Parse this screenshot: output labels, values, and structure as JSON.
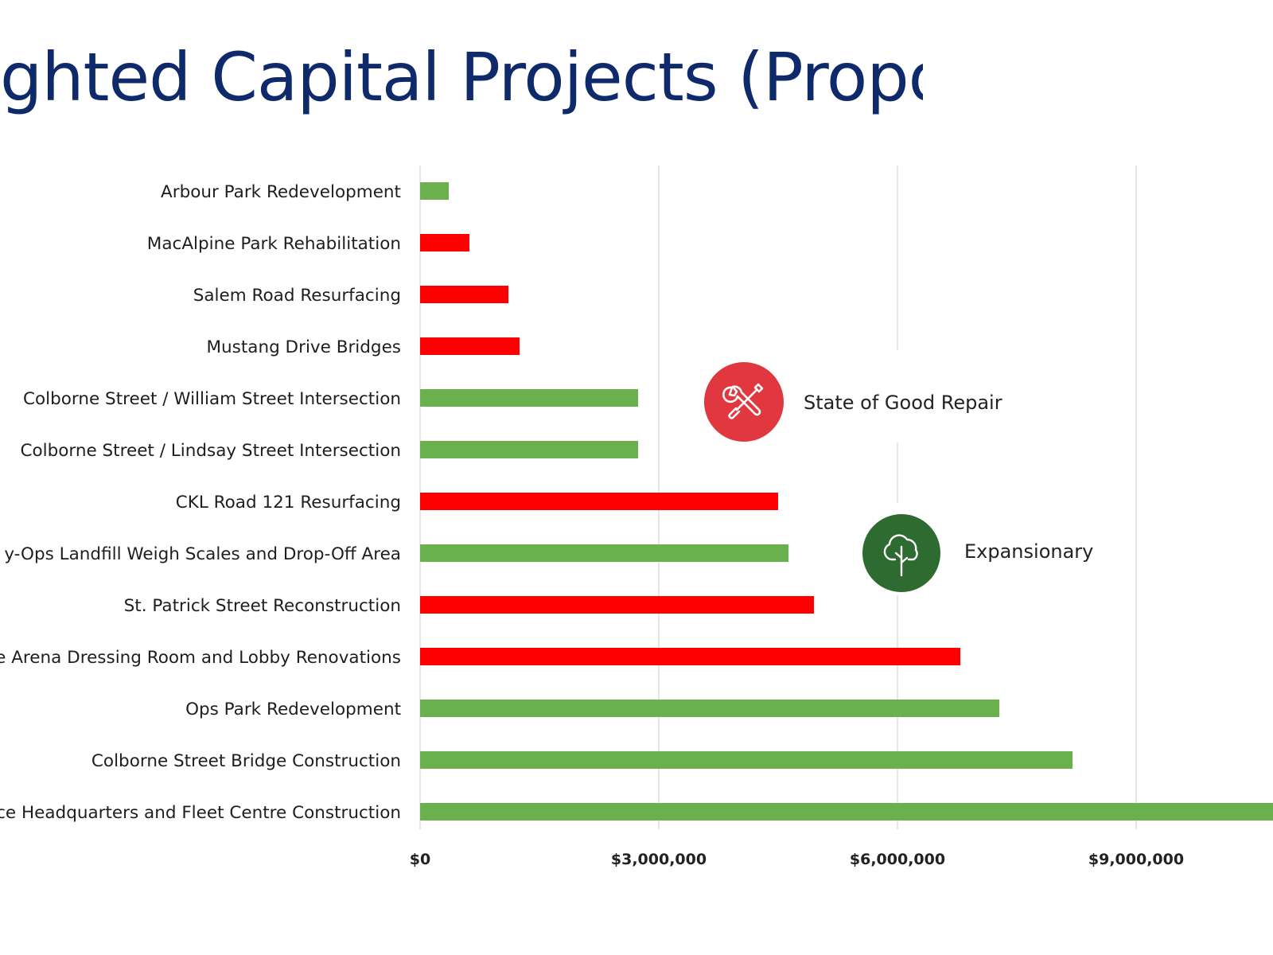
{
  "title": "ghted Capital Projects (Proposed)",
  "colors": {
    "state_of_good_repair": "#ff0000",
    "expansionary": "#6ab04c",
    "title": "#0e2a6b",
    "repair_icon": "#e0383e",
    "expansion_icon": "#2e6b30"
  },
  "legend": [
    {
      "key": "state_of_good_repair",
      "label": "State of Good Repair",
      "icon": "wrench-screwdriver-icon"
    },
    {
      "key": "expansionary",
      "label": "Expansionary",
      "icon": "tree-icon"
    }
  ],
  "chart_data": {
    "type": "bar",
    "orientation": "horizontal",
    "grid": true,
    "xlim": [
      0,
      10800000
    ],
    "x_ticks": [
      {
        "value": 0,
        "label": "$0"
      },
      {
        "value": 3000000,
        "label": "$3,000,000"
      },
      {
        "value": 6000000,
        "label": "$6,000,000"
      },
      {
        "value": 9000000,
        "label": "$9,000,000"
      }
    ],
    "categories": [
      "Arbour Park Redevelopment",
      "MacAlpine Park Rehabilitation",
      "Salem Road Resurfacing",
      "Mustang Drive Bridges",
      "Colborne Street / William Street Intersection",
      "Colborne Street / Lindsay Street Intersection",
      "CKL Road 121 Resurfacing",
      "y-Ops Landfill Weigh Scales and Drop-Off Area",
      "St. Patrick Street Reconstruction",
      "e Arena Dressing Room and Lobby Renovations",
      "Ops Park Redevelopment",
      "Colborne Street Bridge Construction",
      "ce Headquarters and Fleet Centre Construction"
    ],
    "values": [
      360000,
      620000,
      1110000,
      1250000,
      2740000,
      2740000,
      4500000,
      4630000,
      4950000,
      6790000,
      7280000,
      8200000,
      10800000
    ],
    "groups": [
      "expansionary",
      "state_of_good_repair",
      "state_of_good_repair",
      "state_of_good_repair",
      "expansionary",
      "expansionary",
      "state_of_good_repair",
      "expansionary",
      "state_of_good_repair",
      "state_of_good_repair",
      "expansionary",
      "expansionary",
      "expansionary"
    ]
  }
}
